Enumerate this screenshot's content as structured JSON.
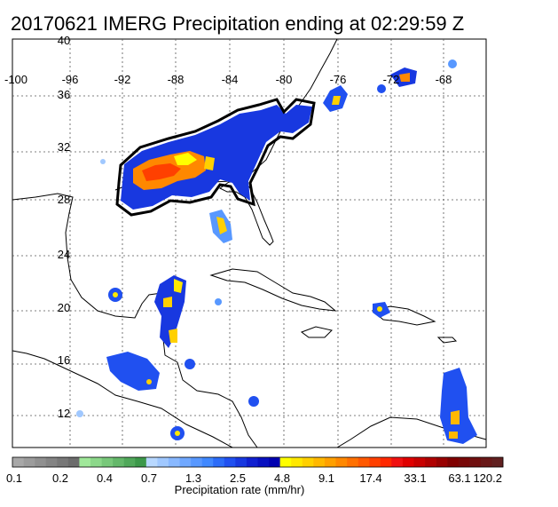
{
  "title": "20170621 IMERG Precipitation ending at 02:29:59 Z",
  "axes": {
    "lon_labels": [
      "-100",
      "-96",
      "-92",
      "-88",
      "-84",
      "-80",
      "-76",
      "-72",
      "-68"
    ],
    "lat_labels": [
      "40",
      "36",
      "32",
      "28",
      "24",
      "20",
      "16",
      "12"
    ]
  },
  "colorbar": {
    "title": "Precipitation rate (mm/hr)",
    "tick_labels": [
      "0.1",
      "0.2",
      "0.4",
      "0.7",
      "1.3",
      "2.5",
      "4.8",
      "9.1",
      "17.4",
      "33.1",
      "63.1",
      "120.2"
    ],
    "colors": [
      "#a8a8a8",
      "#9c9c9c",
      "#909090",
      "#848484",
      "#787878",
      "#6c6c6c",
      "#a0e89a",
      "#8cd88a",
      "#78c87a",
      "#64b86a",
      "#50a85a",
      "#3c984a",
      "#b8d8ff",
      "#a0c8ff",
      "#88b8ff",
      "#70a8ff",
      "#5898ff",
      "#4088ff",
      "#2c6cf8",
      "#2050f0",
      "#1838e0",
      "#1020d0",
      "#0810c0",
      "#0000b0",
      "#ffff00",
      "#ffe800",
      "#ffd000",
      "#ffb800",
      "#ffa000",
      "#ff8800",
      "#ff7000",
      "#ff5800",
      "#ff4000",
      "#ff2800",
      "#f01010",
      "#e00000",
      "#c80000",
      "#b00000",
      "#980000",
      "#800000",
      "#780808",
      "#701010",
      "#681818",
      "#602020"
    ]
  }
}
